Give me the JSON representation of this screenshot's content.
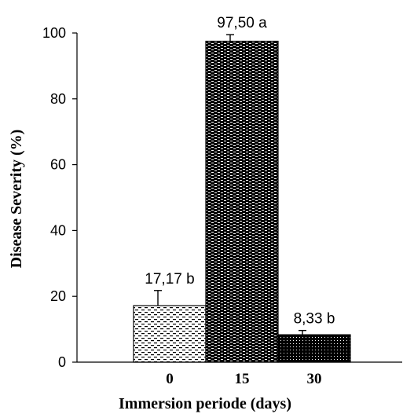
{
  "chart_data": {
    "type": "bar",
    "categories": [
      "0",
      "15",
      "30"
    ],
    "values": [
      17.17,
      97.5,
      8.33
    ],
    "error": [
      4.6,
      2.0,
      1.3
    ],
    "data_labels": [
      "17,17 b",
      "97,50 a",
      "8,33 b"
    ],
    "patterns": [
      "light-dash",
      "dense-dash",
      "dots"
    ],
    "title": "",
    "xlabel": "Immersion periode (days)",
    "ylabel": "Disease Severity (%)",
    "ylim": [
      0,
      100
    ],
    "yticks": [
      "0",
      "20",
      "40",
      "60",
      "80",
      "100"
    ],
    "grid": false,
    "colors": {
      "bar_fill": "#000000",
      "light_fill": "#ffffff",
      "axis": "#000000"
    }
  }
}
